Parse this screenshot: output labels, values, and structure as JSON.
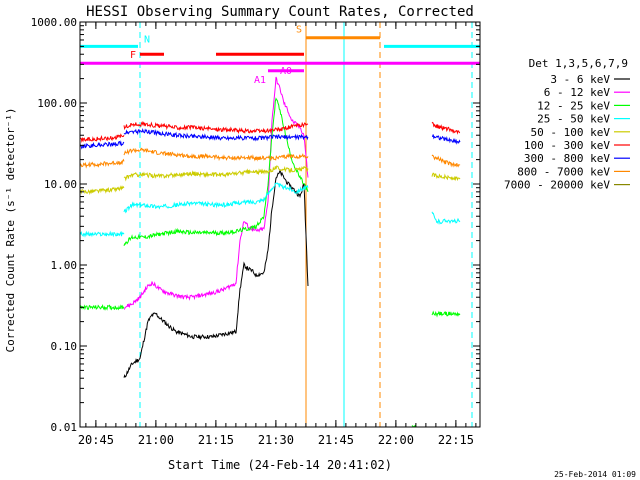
{
  "chart_data": {
    "type": "line",
    "title": "HESSI Observing Summary Count Rates, Corrected",
    "xlabel": "Start Time (24-Feb-14 20:41:02)",
    "ylabel": "Corrected Count Rate (s⁻¹ detector⁻¹)",
    "footer_date": "25-Feb-2014 01:09",
    "y_scale": "log",
    "ylim": [
      0.01,
      1000
    ],
    "xlim_minutes": [
      0,
      100
    ],
    "x_tick_labels": [
      "20:45",
      "21:00",
      "21:15",
      "21:30",
      "21:45",
      "22:00",
      "22:15"
    ],
    "x_tick_minutes": [
      3.97,
      18.97,
      33.97,
      48.97,
      63.97,
      78.97,
      93.97
    ],
    "y_tick_labels": [
      "0.01",
      "0.10",
      "1.00",
      "10.00",
      "100.00",
      "1000.00"
    ],
    "y_tick_values": [
      0.01,
      0.1,
      1,
      10,
      100,
      1000
    ],
    "legend_title": "Det 1,3,5,6,7,9",
    "series": [
      {
        "name": "3 - 6 keV",
        "color": "#000000",
        "segments": [
          {
            "x": [
              11,
              13,
              14,
              15,
              16,
              17,
              18,
              19,
              20,
              21,
              22,
              24,
              26,
              28,
              30,
              33,
              36,
              39,
              40,
              41,
              42,
              43,
              44,
              46,
              47,
              48,
              49,
              50,
              51,
              52,
              53,
              54,
              55,
              56,
              57
            ],
            "y": [
              0.04,
              0.06,
              0.065,
              0.07,
              0.12,
              0.2,
              0.24,
              0.25,
              0.22,
              0.2,
              0.18,
              0.15,
              0.14,
              0.13,
              0.13,
              0.13,
              0.14,
              0.15,
              0.5,
              1.0,
              0.9,
              0.85,
              0.75,
              0.8,
              1.5,
              5.0,
              12.0,
              14.0,
              12.0,
              10.0,
              9.0,
              8.0,
              7.0,
              10.0,
              0.55
            ]
          }
        ]
      },
      {
        "name": "6 - 12 keV",
        "color": "#ff00ff",
        "segments": [
          {
            "x": [
              11,
              13,
              15,
              17,
              18,
              19,
              20,
              22,
              24,
              26,
              28,
              30,
              33,
              36,
              39,
              40,
              41,
              42,
              43,
              44,
              46,
              47,
              48,
              49,
              50,
              51,
              52,
              53,
              54,
              55,
              56,
              57
            ],
            "y": [
              0.3,
              0.33,
              0.4,
              0.55,
              0.6,
              0.55,
              0.5,
              0.45,
              0.42,
              0.4,
              0.4,
              0.42,
              0.45,
              0.5,
              0.6,
              2.0,
              3.5,
              3.0,
              2.8,
              2.6,
              2.8,
              6.0,
              60.0,
              200.0,
              150.0,
              100.0,
              80.0,
              60.0,
              55.0,
              50.0,
              40.0,
              12.0
            ]
          }
        ]
      },
      {
        "name": "12 - 25 keV",
        "color": "#00ff00",
        "segments": [
          {
            "x": [
              0,
              11
            ],
            "y": [
              0.3,
              0.3
            ]
          },
          {
            "x": [
              11,
              13,
              16,
              20,
              24,
              28,
              32,
              36,
              39,
              42,
              44,
              46,
              47,
              48,
              49,
              50,
              51,
              52,
              53,
              54,
              55,
              56,
              57
            ],
            "y": [
              1.8,
              2.2,
              2.2,
              2.4,
              2.6,
              2.5,
              2.5,
              2.5,
              2.6,
              2.8,
              3.0,
              4.0,
              10.0,
              40.0,
              120.0,
              80.0,
              50.0,
              30.0,
              20.0,
              15.0,
              12.0,
              10.0,
              8.0
            ]
          },
          {
            "x": [
              83,
              84
            ],
            "y": [
              0.01,
              0.01
            ]
          },
          {
            "x": [
              88,
              95
            ],
            "y": [
              0.25,
              0.25
            ]
          }
        ]
      },
      {
        "name": "25 - 50 keV",
        "color": "#00ffff",
        "segments": [
          {
            "x": [
              0,
              11
            ],
            "y": [
              2.4,
              2.4
            ]
          },
          {
            "x": [
              11,
              13,
              16,
              20,
              24,
              28,
              32,
              36,
              39,
              42,
              44,
              46,
              47,
              48,
              49,
              50,
              51,
              52,
              53,
              54,
              55,
              56,
              57
            ],
            "y": [
              4.5,
              5.5,
              5.5,
              5.2,
              5.5,
              5.8,
              5.6,
              5.5,
              5.8,
              6.0,
              6.0,
              6.5,
              7.5,
              9.0,
              10.0,
              9.5,
              9.0,
              9.0,
              8.5,
              8.0,
              8.5,
              9.0,
              9.0
            ]
          },
          {
            "x": [
              88,
              89,
              90,
              91,
              92,
              93,
              94,
              95
            ],
            "y": [
              4.5,
              3.5,
              3.4,
              3.5,
              3.6,
              3.4,
              3.5,
              3.5
            ]
          }
        ]
      },
      {
        "name": "50 - 100 keV",
        "color": "#cccc00",
        "segments": [
          {
            "x": [
              0,
              4,
              8,
              11
            ],
            "y": [
              8.0,
              8.2,
              8.5,
              9.0
            ]
          },
          {
            "x": [
              11,
              13,
              16,
              20,
              24,
              28,
              32,
              36,
              39,
              42,
              44,
              46,
              47,
              48,
              49,
              50,
              51,
              52,
              53,
              54,
              55,
              56,
              57
            ],
            "y": [
              11.5,
              13.0,
              13.0,
              12.5,
              13.0,
              13.5,
              13.0,
              13.0,
              13.5,
              14.0,
              14.0,
              14.0,
              14.5,
              15.0,
              16.0,
              15.5,
              15.0,
              15.0,
              15.0,
              15.0,
              15.0,
              15.5,
              15.5
            ]
          },
          {
            "x": [
              88,
              90,
              92,
              95
            ],
            "y": [
              13.0,
              12.5,
              12.0,
              11.5
            ]
          }
        ]
      },
      {
        "name": "100 - 300 keV",
        "color": "#ff0000",
        "segments": [
          {
            "x": [
              0,
              4,
              8,
              11
            ],
            "y": [
              35,
              36,
              37,
              40
            ]
          },
          {
            "x": [
              11,
              13,
              16,
              20,
              24,
              28,
              32,
              36,
              39,
              42,
              44,
              46,
              48,
              50,
              52,
              54,
              56,
              57
            ],
            "y": [
              50,
              54,
              55,
              52,
              50,
              50,
              48,
              47,
              46,
              45,
              45,
              45,
              46,
              47,
              50,
              52,
              54,
              55
            ]
          },
          {
            "x": [
              88,
              90,
              92,
              95
            ],
            "y": [
              55,
              50,
              48,
              43
            ]
          }
        ]
      },
      {
        "name": "300 - 800 keV",
        "color": "#0000ff",
        "segments": [
          {
            "x": [
              0,
              4,
              8,
              11
            ],
            "y": [
              29,
              30,
              31,
              32
            ]
          },
          {
            "x": [
              11,
              13,
              16,
              20,
              24,
              28,
              32,
              36,
              39,
              42,
              44,
              46,
              48,
              50,
              52,
              54,
              56,
              57
            ],
            "y": [
              42,
              44,
              45,
              42,
              40,
              39,
              38,
              37,
              37,
              37,
              37,
              37,
              38,
              38,
              38,
              38,
              38,
              38
            ]
          },
          {
            "x": [
              88,
              90,
              92,
              95
            ],
            "y": [
              40,
              37,
              35,
              33
            ]
          }
        ]
      },
      {
        "name": "800 - 7000 keV",
        "color": "#ff8800",
        "segments": [
          {
            "x": [
              0,
              4,
              8,
              11
            ],
            "y": [
              17,
              17.5,
              18,
              19
            ]
          },
          {
            "x": [
              11,
              13,
              16,
              20,
              24,
              28,
              32,
              36,
              39,
              42,
              44,
              46,
              48,
              50,
              52,
              54,
              56,
              57
            ],
            "y": [
              24,
              26,
              26,
              24,
              23,
              22,
              22,
              21,
              21,
              21,
              21,
              21,
              21,
              21,
              22,
              22,
              22,
              22
            ]
          },
          {
            "x": [
              88,
              90,
              92,
              95
            ],
            "y": [
              22,
              20,
              18,
              17
            ]
          }
        ]
      },
      {
        "name": "7000 - 20000 keV",
        "color": "#888800",
        "segments": []
      }
    ],
    "flag_bars": [
      {
        "label": "N",
        "color": "#00ffff",
        "y": 500,
        "segments": [
          [
            0,
            14.5
          ],
          [
            76,
            100
          ]
        ]
      },
      {
        "label": "S",
        "color": "#ff8800",
        "y": 640,
        "segments": [
          [
            56.5,
            75
          ]
        ]
      },
      {
        "label": "F",
        "color": "#ff0000",
        "y": 400,
        "segments": [
          [
            15,
            21
          ],
          [
            34,
            56
          ]
        ]
      },
      {
        "label": "",
        "color": "#ff00ff",
        "y": 310,
        "segments": [
          [
            0,
            100
          ]
        ]
      },
      {
        "label": "A1",
        "color": "#ff00ff",
        "y": 250,
        "segments": [
          [
            47,
            50
          ]
        ]
      },
      {
        "label": "A0",
        "color": "#ff00ff",
        "y": 250,
        "segments": [
          [
            50,
            56
          ]
        ]
      }
    ],
    "vertical_markers": [
      {
        "x": 0,
        "color": "#00ffff",
        "style": "solid"
      },
      {
        "x": 15,
        "color": "#00ffff",
        "style": "dashed"
      },
      {
        "x": 56.5,
        "color": "#ff8800",
        "style": "solid"
      },
      {
        "x": 66,
        "color": "#00ffff",
        "style": "solid"
      },
      {
        "x": 75,
        "color": "#ff8800",
        "style": "dashed"
      },
      {
        "x": 98,
        "color": "#00ffff",
        "style": "dashed"
      }
    ]
  }
}
